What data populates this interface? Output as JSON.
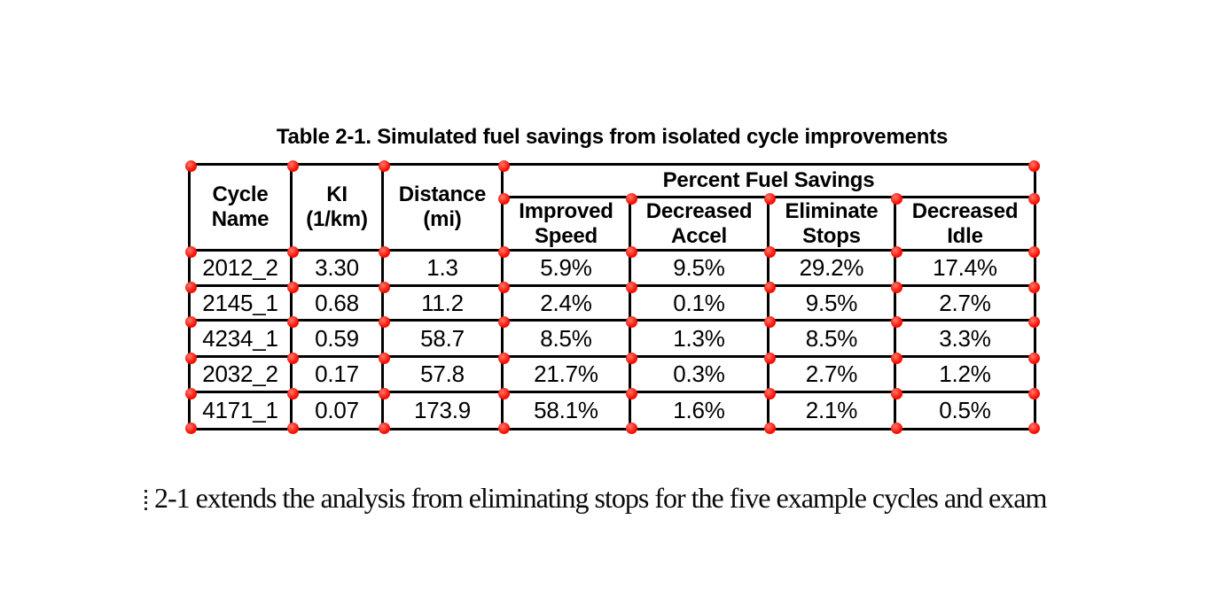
{
  "page": {
    "background": "#ffffff",
    "text_color": "#000000"
  },
  "caption": "Table 2-1. Simulated fuel savings from isolated cycle improvements",
  "table": {
    "columns": [
      "Cycle Name",
      "KI (1/km)",
      "Distance (mi)"
    ],
    "group_header": "Percent Fuel Savings",
    "sub_columns": [
      "Improved Speed",
      "Decreased Accel",
      "Eliminate Stops",
      "Decreased Idle"
    ],
    "rows": [
      [
        "2012_2",
        "3.30",
        "1.3",
        "5.9%",
        "9.5%",
        "29.2%",
        "17.4%"
      ],
      [
        "2145_1",
        "0.68",
        "11.2",
        "2.4%",
        "0.1%",
        "9.5%",
        "2.7%"
      ],
      [
        "4234_1",
        "0.59",
        "58.7",
        "8.5%",
        "1.3%",
        "8.5%",
        "3.3%"
      ],
      [
        "2032_2",
        "0.17",
        "57.8",
        "21.7%",
        "0.3%",
        "2.7%",
        "1.2%"
      ],
      [
        "4171_1",
        "0.07",
        "173.9",
        "58.1%",
        "1.6%",
        "2.1%",
        "0.5%"
      ]
    ]
  },
  "body_text": "2-1 extends the analysis from eliminating stops for the five example cycles and exam",
  "overlay": {
    "marker_color": "#f90d00",
    "marker_highlight": "#ff7a6e",
    "marker_diameter": 13
  }
}
